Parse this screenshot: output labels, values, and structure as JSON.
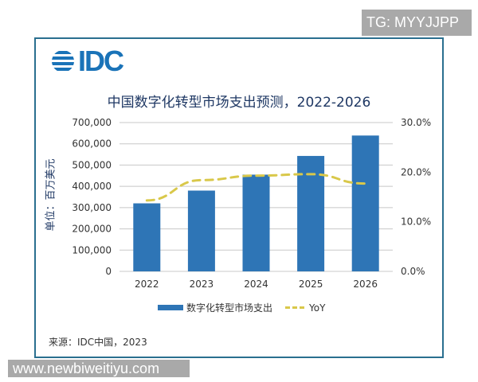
{
  "watermarks": {
    "top": "TG: MYYJJPP",
    "bottom": "www.newbiweitiyu.com"
  },
  "logo": {
    "text": "IDC"
  },
  "source": "来源：IDC中国，2023",
  "chart_data": {
    "type": "bar",
    "title": "中国数字化转型市场支出预测，2022-2026",
    "ylabel": "单位：百万美元",
    "categories": [
      "2022",
      "2023",
      "2024",
      "2025",
      "2026"
    ],
    "series": [
      {
        "name": "数字化转型市场支出",
        "type": "bar",
        "axis": "left",
        "color": "#2e75b6",
        "values": [
          320000,
          380000,
          455000,
          543000,
          639000
        ]
      },
      {
        "name": "YoY",
        "type": "line",
        "style": "dashed",
        "axis": "right",
        "color": "#d9c84a",
        "values": [
          14.3,
          18.4,
          19.3,
          19.6,
          17.7
        ]
      }
    ],
    "ylim": [
      0,
      700000
    ],
    "yticks": [
      "0",
      "100,000",
      "200,000",
      "300,000",
      "400,000",
      "500,000",
      "600,000",
      "700,000"
    ],
    "y2lim": [
      0,
      30
    ],
    "y2ticks": [
      "0.0%",
      "10.0%",
      "20.0%",
      "30.0%"
    ],
    "grid": true,
    "legend": "bottom"
  }
}
